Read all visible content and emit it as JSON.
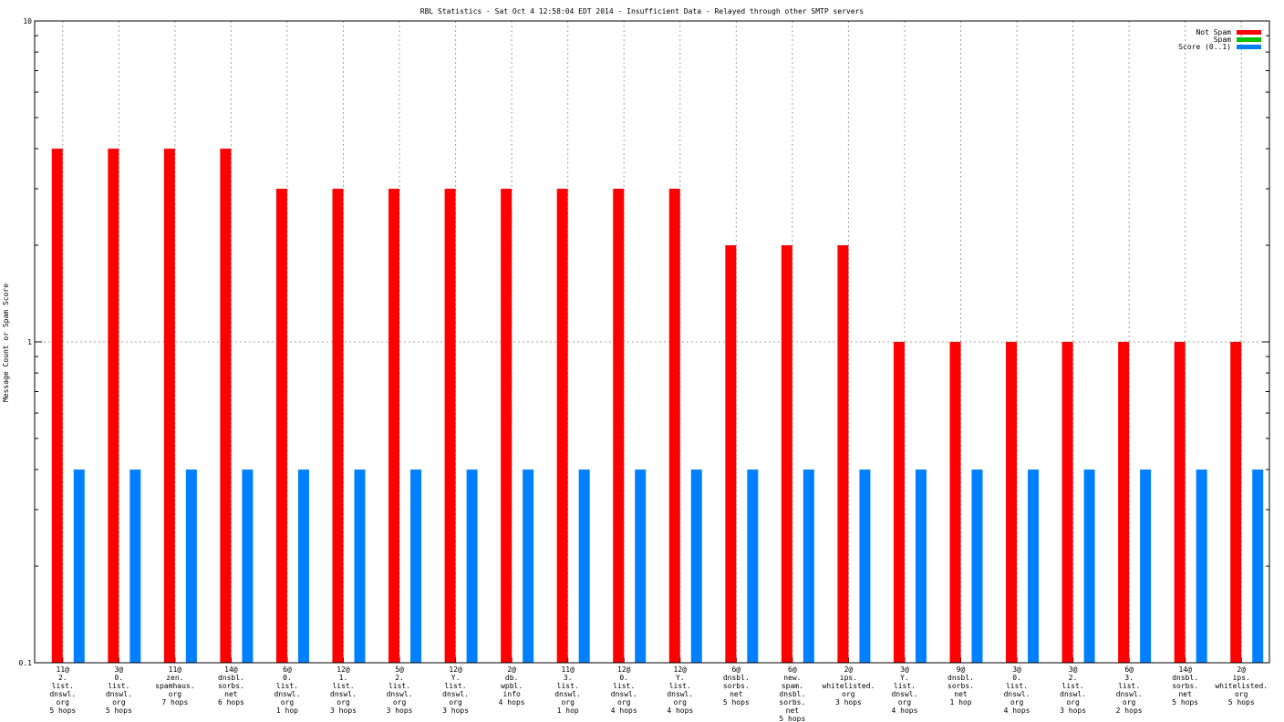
{
  "chart_data": {
    "type": "bar",
    "title": "RBL Statistics - Sat Oct  4 12:58:04 EDT 2014 - Insufficient Data - Relayed through other SMTP servers",
    "xlabel": "",
    "ylabel": "Message Count or Spam Score",
    "yscale": "log",
    "ylim": [
      0.1,
      10
    ],
    "yticks": [
      {
        "v": 0.1,
        "label": "0.1"
      },
      {
        "v": 1,
        "label": "1"
      },
      {
        "v": 10,
        "label": "10"
      }
    ],
    "legend_position": "top-right",
    "grid": true,
    "categories": [
      [
        "11@",
        "2.",
        "list.",
        "dnswl.",
        "org",
        "5 hops"
      ],
      [
        "3@",
        "0.",
        "list.",
        "dnswl.",
        "org",
        "5 hops"
      ],
      [
        "11@",
        "zen.",
        "spamhaus.",
        "org",
        "7 hops"
      ],
      [
        "14@",
        "dnsbl.",
        "sorbs.",
        "net",
        "6 hops"
      ],
      [
        "6@",
        "0.",
        "list.",
        "dnswl.",
        "org",
        "1 hop"
      ],
      [
        "12@",
        "1.",
        "list.",
        "dnswl.",
        "org",
        "3 hops"
      ],
      [
        "5@",
        "2.",
        "list.",
        "dnswl.",
        "org",
        "3 hops"
      ],
      [
        "12@",
        "Y.",
        "list.",
        "dnswl.",
        "org",
        "3 hops"
      ],
      [
        "2@",
        "db.",
        "wpbl.",
        "info",
        "4 hops"
      ],
      [
        "11@",
        "3.",
        "list.",
        "dnswl.",
        "org",
        "1 hop"
      ],
      [
        "12@",
        "0.",
        "list.",
        "dnswl.",
        "org",
        "4 hops"
      ],
      [
        "12@",
        "Y.",
        "list.",
        "dnswl.",
        "org",
        "4 hops"
      ],
      [
        "6@",
        "dnsbl.",
        "sorbs.",
        "net",
        "5 hops"
      ],
      [
        "6@",
        "new.",
        "spam.",
        "dnsbl.",
        "sorbs.",
        "net",
        "5 hops"
      ],
      [
        "2@",
        "ips.",
        "whitelisted.",
        "org",
        "3 hops"
      ],
      [
        "3@",
        "Y.",
        "list.",
        "dnswl.",
        "org",
        "4 hops"
      ],
      [
        "9@",
        "dnsbl.",
        "sorbs.",
        "net",
        "1 hop"
      ],
      [
        "3@",
        "0.",
        "list.",
        "dnswl.",
        "org",
        "4 hops"
      ],
      [
        "3@",
        "2.",
        "list.",
        "dnswl.",
        "org",
        "3 hops"
      ],
      [
        "6@",
        "3.",
        "list.",
        "dnswl.",
        "org",
        "2 hops"
      ],
      [
        "14@",
        "dnsbl.",
        "sorbs.",
        "net",
        "5 hops"
      ],
      [
        "2@",
        "ips.",
        "whitelisted.",
        "org",
        "5 hops"
      ]
    ],
    "series": [
      {
        "name": "Not Spam",
        "color": "#ff0000",
        "values": [
          4,
          4,
          4,
          4,
          3,
          3,
          3,
          3,
          3,
          3,
          3,
          3,
          2,
          2,
          2,
          1,
          1,
          1,
          1,
          1,
          1,
          1
        ]
      },
      {
        "name": "Spam",
        "color": "#00c000",
        "values": [
          0,
          0,
          0,
          0,
          0,
          0,
          0,
          0,
          0,
          0,
          0,
          0,
          0,
          0,
          0,
          0,
          0,
          0,
          0,
          0,
          0,
          0
        ]
      },
      {
        "name": "Score (0..1)",
        "color": "#0080ff",
        "values": [
          0.4,
          0.4,
          0.4,
          0.4,
          0.4,
          0.4,
          0.4,
          0.4,
          0.4,
          0.4,
          0.4,
          0.4,
          0.4,
          0.4,
          0.4,
          0.4,
          0.4,
          0.4,
          0.4,
          0.4,
          0.4,
          0.4
        ]
      }
    ]
  }
}
